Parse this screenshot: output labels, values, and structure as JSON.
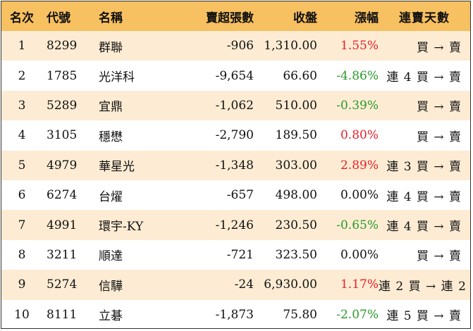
{
  "table": {
    "headers": {
      "rank": "名次",
      "code": "代號",
      "name": "名稱",
      "net_sell": "賣超張數",
      "close": "收盤",
      "change": "漲幅",
      "streak": "連賣天數"
    },
    "rows": [
      {
        "rank": "1",
        "code": "8299",
        "name": "群聯",
        "net_sell": "-906",
        "close": "1,310.00",
        "change": "1.55%",
        "dir": "up",
        "streak": "買 → 賣"
      },
      {
        "rank": "2",
        "code": "1785",
        "name": "光洋科",
        "net_sell": "-9,654",
        "close": "66.60",
        "change": "-4.86%",
        "dir": "down",
        "streak": "連 4 買 → 賣"
      },
      {
        "rank": "3",
        "code": "5289",
        "name": "宜鼎",
        "net_sell": "-1,062",
        "close": "510.00",
        "change": "-0.39%",
        "dir": "down",
        "streak": "買 → 賣"
      },
      {
        "rank": "4",
        "code": "3105",
        "name": "穩懋",
        "net_sell": "-2,790",
        "close": "189.50",
        "change": "0.80%",
        "dir": "up",
        "streak": "買 → 賣"
      },
      {
        "rank": "5",
        "code": "4979",
        "name": "華星光",
        "net_sell": "-1,348",
        "close": "303.00",
        "change": "2.89%",
        "dir": "up",
        "streak": "連 3 買 → 賣"
      },
      {
        "rank": "6",
        "code": "6274",
        "name": "台燿",
        "net_sell": "-657",
        "close": "498.00",
        "change": "0.00%",
        "dir": "flat",
        "streak": "連 4 買 → 賣"
      },
      {
        "rank": "7",
        "code": "4991",
        "name": "環宇-KY",
        "net_sell": "-1,246",
        "close": "230.50",
        "change": "-0.65%",
        "dir": "down",
        "streak": "連 4 買 → 賣"
      },
      {
        "rank": "8",
        "code": "3211",
        "name": "順達",
        "net_sell": "-721",
        "close": "323.50",
        "change": "0.00%",
        "dir": "flat",
        "streak": "買 → 賣"
      },
      {
        "rank": "9",
        "code": "5274",
        "name": "信驊",
        "net_sell": "-24",
        "close": "6,930.00",
        "change": "1.17%",
        "dir": "up",
        "streak": "連 2 買 → 連 2 賣"
      },
      {
        "rank": "10",
        "code": "8111",
        "name": "立碁",
        "net_sell": "-1,873",
        "close": "75.80",
        "change": "-2.07%",
        "dir": "down",
        "streak": "連 5 買 → 賣"
      }
    ]
  },
  "colors": {
    "header_bg": "#f7c060",
    "stripe_bg": "#fdecd3",
    "up": "#e8202a",
    "down": "#2a9a2a"
  }
}
